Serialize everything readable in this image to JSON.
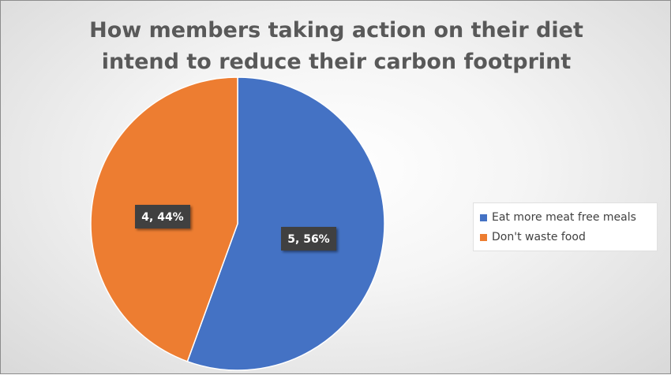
{
  "chart_data": {
    "type": "pie",
    "title_lines": [
      "How members taking action on their diet",
      "intend to reduce their carbon footprint"
    ],
    "slices": [
      {
        "name": "Eat more meat free meals",
        "value": 5,
        "label": "5, 56%",
        "color": "#4472C4"
      },
      {
        "name": "Don't waste food",
        "value": 4,
        "label": "4, 44%",
        "color": "#ED7D31"
      }
    ],
    "legend_position": "right"
  }
}
